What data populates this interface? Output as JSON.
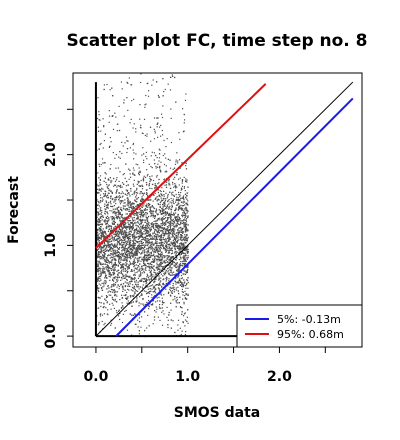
{
  "chart_data": {
    "type": "scatter",
    "title": "Scatter plot FC, time step no. 8",
    "xlabel": "SMOS data",
    "ylabel": "Forecast",
    "xlim": [
      -0.25,
      2.9
    ],
    "ylim": [
      -0.12,
      2.9
    ],
    "x_ticks": [
      0.0,
      0.5,
      1.0,
      1.5,
      2.0,
      2.5
    ],
    "x_tick_labels": [
      "0.0",
      "",
      "1.0",
      "",
      "2.0",
      ""
    ],
    "y_ticks": [
      0.0,
      0.5,
      1.0,
      1.5,
      2.0,
      2.5
    ],
    "y_tick_labels": [
      "0.0",
      "",
      "1.0",
      "",
      "2.0",
      ""
    ],
    "scatter": {
      "color": "#4d4d4d",
      "x_range": [
        0.0,
        1.0
      ],
      "y_range": [
        0.0,
        2.9
      ],
      "y_mean": 1.05
    },
    "lines": [
      {
        "name": "identity",
        "color": "#000000",
        "x": [
          0.0,
          2.8
        ],
        "y": [
          0.0,
          2.8
        ]
      },
      {
        "name": "5%",
        "color": "#1a1aee",
        "x": [
          0.22,
          2.8
        ],
        "y": [
          0.0,
          2.62
        ]
      },
      {
        "name": "95%",
        "color": "#e01010",
        "x": [
          0.0,
          1.85
        ],
        "y": [
          0.97,
          2.78
        ]
      }
    ],
    "legend": {
      "placement": "bottom-right",
      "entries": [
        {
          "label": "5%: -0.13m",
          "color": "#1a1aee"
        },
        {
          "label": "95%:  0.68m",
          "color": "#e01010"
        }
      ]
    },
    "grid": false
  }
}
